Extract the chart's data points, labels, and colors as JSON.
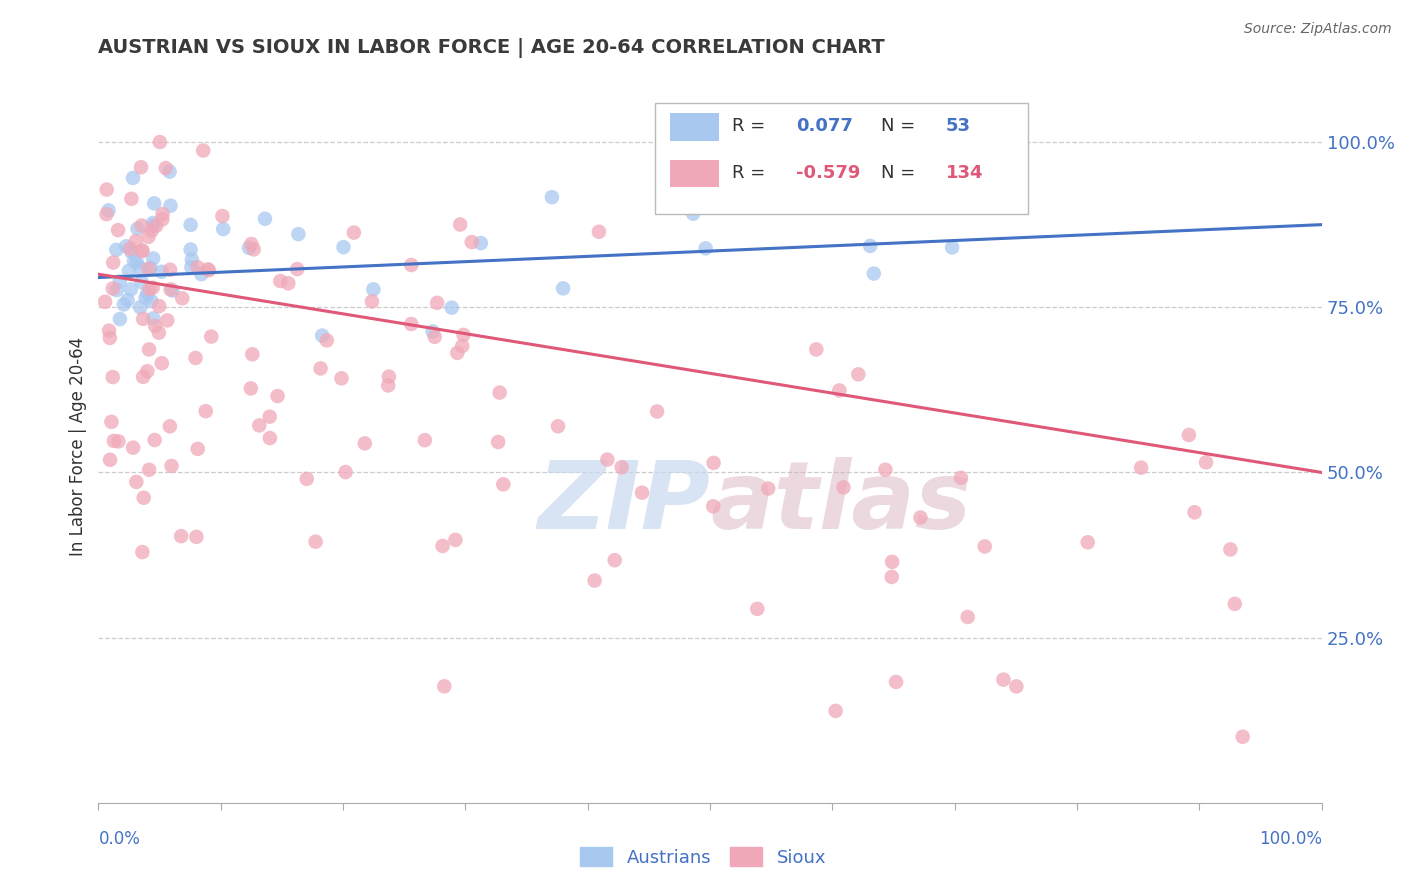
{
  "title": "AUSTRIAN VS SIOUX IN LABOR FORCE | AGE 20-64 CORRELATION CHART",
  "source_text": "Source: ZipAtlas.com",
  "ylabel": "In Labor Force | Age 20-64",
  "legend_r": [
    0.077,
    -0.579
  ],
  "legend_n": [
    53,
    134
  ],
  "blue_scatter_color": "#a8c8f0",
  "pink_scatter_color": "#f0a8b8",
  "blue_line_color": "#4472c4",
  "pink_line_color": "#e05878",
  "title_color": "#3a3a3a",
  "axis_label_color": "#4472c4",
  "watermark_color": "#c8d8f0",
  "grid_color": "#cccccc",
  "xlim": [
    0.0,
    1.0
  ],
  "ylim": [
    0.0,
    1.08
  ],
  "yticks": [
    0.25,
    0.5,
    0.75,
    1.0
  ],
  "ytick_labels": [
    "25.0%",
    "50.0%",
    "75.0%",
    "100.0%"
  ],
  "n_austrians": 53,
  "n_sioux": 134,
  "aus_trend_start": 0.795,
  "aus_trend_end": 0.875,
  "sioux_trend_start": 0.8,
  "sioux_trend_end": 0.5
}
